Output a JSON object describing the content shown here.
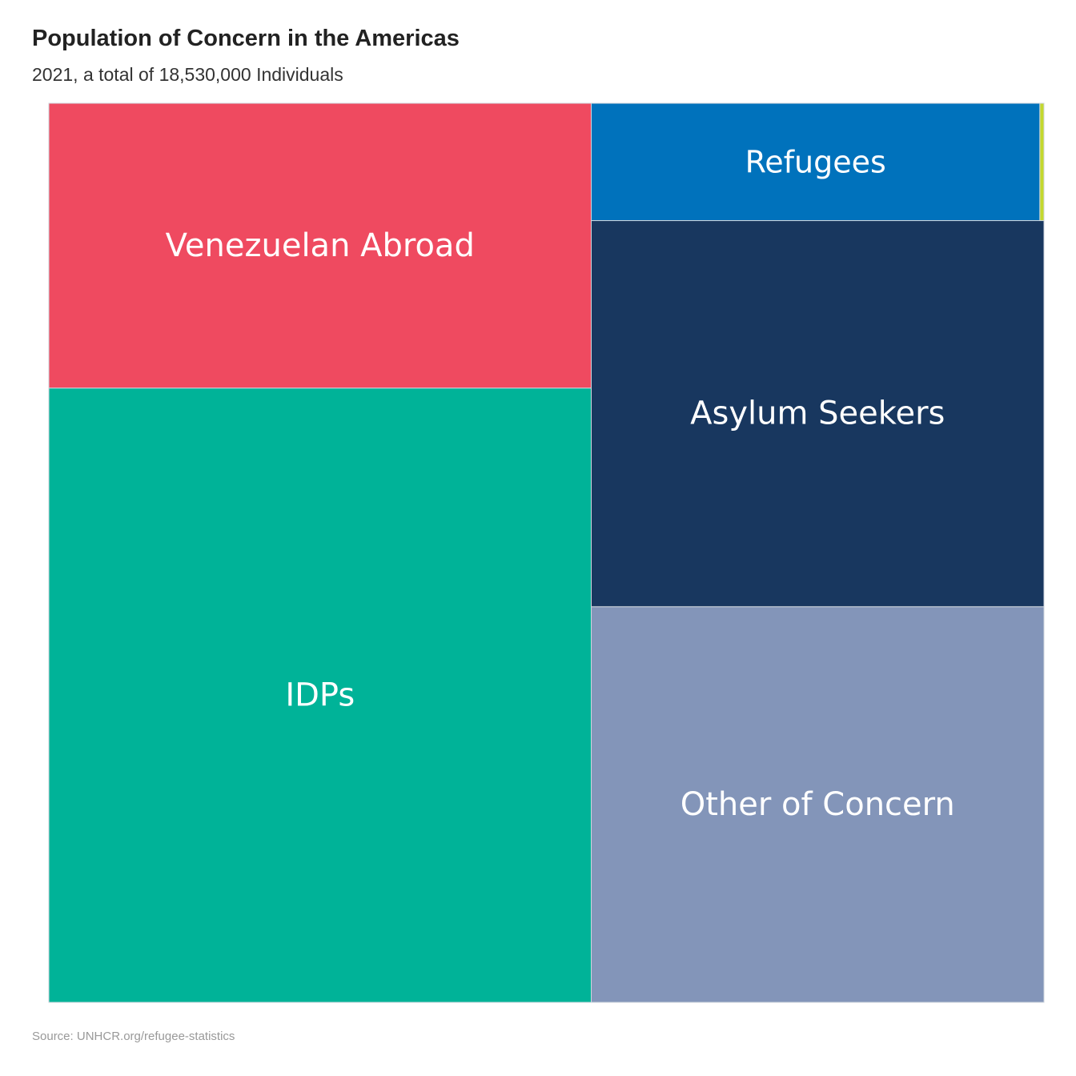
{
  "header": {
    "title": "Population of Concern in the Americas",
    "subtitle": "2021, a total of 18,530,000 Individuals"
  },
  "footer": {
    "source": "Source: UNHCR.org/refugee-statistics"
  },
  "chart_data": {
    "type": "treemap",
    "title": "Population of Concern in the Americas",
    "subtitle": "2021, a total of 18,530,000 Individuals",
    "total": 18530000,
    "items": [
      {
        "label": "IDPs",
        "value": 6900000,
        "color": "#00b398"
      },
      {
        "label": "Venezuelan Abroad",
        "value": 3200000,
        "color": "#ef4a60"
      },
      {
        "label": "Other of Concern",
        "value": 3710000,
        "color": "#8395b9"
      },
      {
        "label": "Asylum Seekers",
        "value": 3620000,
        "color": "#18375f"
      },
      {
        "label": "Refugees",
        "value": 1090000,
        "color": "#0072bc"
      },
      {
        "label": "",
        "value": 10000,
        "color": "#c3d82e"
      }
    ]
  }
}
